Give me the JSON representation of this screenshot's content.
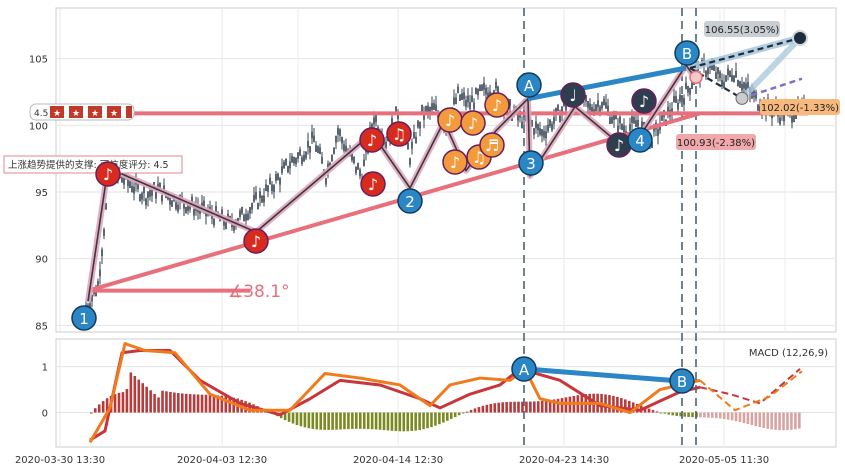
{
  "chart_data": [
    {
      "type": "candlestick",
      "panel": "price",
      "yticks": [
        85,
        90,
        95,
        100,
        105
      ],
      "ylim": [
        84.5,
        108.8
      ],
      "x_range": [
        0,
        120
      ],
      "grid": true,
      "series": [
        {
          "name": "close",
          "x": [
            0,
            2,
            4,
            6,
            8,
            10,
            12,
            14,
            16,
            18,
            20,
            22,
            24,
            26,
            28,
            30,
            32,
            34,
            36,
            38,
            40,
            42,
            44,
            46,
            48,
            50,
            52,
            54,
            56,
            58,
            60,
            62,
            64,
            66,
            68,
            70,
            72,
            74,
            76,
            78,
            80,
            82,
            84,
            86,
            88,
            90,
            92,
            94,
            96,
            98,
            100,
            102,
            104,
            106,
            108,
            110,
            112,
            114,
            116,
            118,
            120
          ],
          "y": [
            86.3,
            88,
            96.6,
            96,
            95.4,
            94.8,
            95.2,
            94.6,
            94.2,
            93.9,
            93.5,
            93.1,
            92.6,
            93.2,
            94.1,
            95,
            96,
            97.2,
            97.9,
            98.9,
            96.3,
            99.6,
            97.6,
            96.2,
            100.7,
            98.8,
            101,
            97.7,
            100.8,
            101.2,
            100,
            102.2,
            101.6,
            102.5,
            102.8,
            101.5,
            100.6,
            100.2,
            99.4,
            100.4,
            101.6,
            102.3,
            101.2,
            101.8,
            100.4,
            99.7,
            100.2,
            98.8,
            100.2,
            101.5,
            102.5,
            104,
            104.4,
            103.3,
            104,
            102.8,
            101.8,
            101.2,
            100.8,
            101,
            101.2
          ]
        }
      ],
      "annotations": {
        "support_label": "上涨趋势提供的支撑: 可信度评分: 4.5",
        "resistance_score": "4.5",
        "angle_label": "∡38.1°",
        "target_high": "106.55(3.05%)",
        "target_mid": "102.02(-1.33%)",
        "target_low": "100.93(-2.38%)",
        "pattern_labels": [
          "1",
          "2",
          "3",
          "4",
          "A",
          "B"
        ]
      }
    },
    {
      "type": "bar+line",
      "panel": "macd",
      "title": "MACD (12,26,9)",
      "yticks": [
        0,
        1
      ],
      "ylim": [
        -0.75,
        1.6
      ],
      "pattern_labels": [
        "A",
        "B"
      ]
    }
  ],
  "x_axis": {
    "tick_labels": [
      "2020-03-30 13:30",
      "2020-04-03 12:30",
      "2020-04-14 12:30",
      "2020-04-23 14:30",
      "2020-05-05 11:30"
    ]
  },
  "colors": {
    "up_bar": "#b83a3a",
    "down_bar": "#7a8a1e",
    "trendline": "#e8707c",
    "zigzag": "#d98aa8",
    "note_red": "#d62b1e",
    "note_orange": "#f39a3c",
    "note_dark": "#2e3e4e",
    "pattern_blue": "#2b86c6",
    "macd_line": "#c8363b",
    "signal_line": "#f07a1c"
  }
}
